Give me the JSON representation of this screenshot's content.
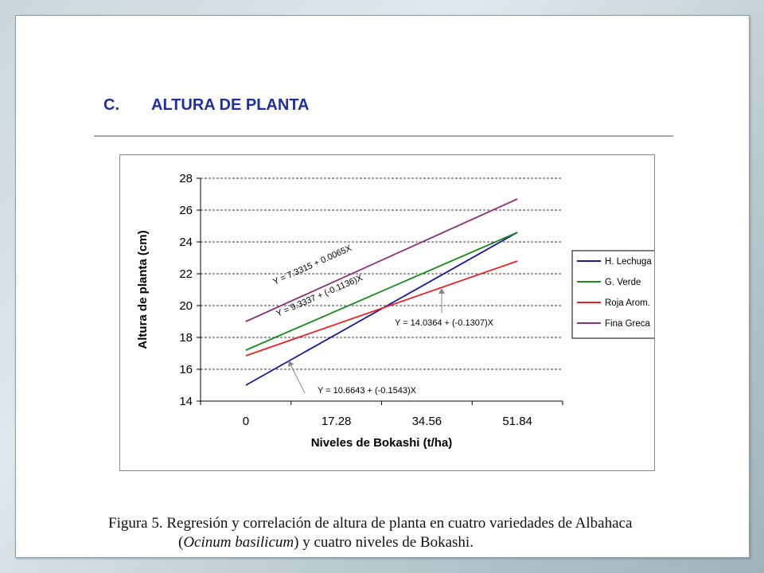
{
  "slide": {
    "section_letter": "C.",
    "section_title": "ALTURA DE PLANTA"
  },
  "caption": {
    "line1": "Figura 5. Regresión y correlación de altura de planta en cuatro variedades de  Albahaca",
    "line2_prefix": "(",
    "line2_italic": "Ocinum basilicum",
    "line2_suffix": ")  y cuatro niveles de Bokashi."
  },
  "chart_data": {
    "type": "line",
    "x": [
      0,
      17.28,
      34.56,
      51.84
    ],
    "categories": [
      "0",
      "17.28",
      "34.56",
      "51.84"
    ],
    "xlabel": "Niveles de Bokashi (t/ha)",
    "ylabel": "Altura de planta (cm)",
    "ylim": [
      14,
      28
    ],
    "yticks": [
      14,
      16,
      18,
      20,
      22,
      24,
      26,
      28
    ],
    "grid": "horizontal-dashed",
    "legend": "right",
    "series": [
      {
        "name": "H. Lechuga",
        "color": "#1a1aa0",
        "start": [
          0,
          15.0
        ],
        "end": [
          51.84,
          24.6
        ]
      },
      {
        "name": "G. Verde",
        "color": "#1a8a1a",
        "start": [
          0,
          17.2
        ],
        "end": [
          51.84,
          24.6
        ]
      },
      {
        "name": "Roja Arom.",
        "color": "#ee2222",
        "start": [
          0,
          16.85
        ],
        "end": [
          51.84,
          22.8
        ]
      },
      {
        "name": "Fina Greca",
        "color": "#8b2f7e",
        "start": [
          0,
          19.0
        ],
        "end": [
          51.84,
          26.7
        ]
      }
    ],
    "annotations": [
      {
        "text": "Y = 7.3315 + 0.0065X",
        "series": "Fina Greca"
      },
      {
        "text": "Y = 9.3337 + (-0.1136)X",
        "series": "G. Verde"
      },
      {
        "text": "Y = 14.0364 + (-0.1307)X",
        "series": "Roja Arom."
      },
      {
        "text": "Y = 10.6643 + (-0.1543)X",
        "series": "H. Lechuga"
      }
    ]
  }
}
